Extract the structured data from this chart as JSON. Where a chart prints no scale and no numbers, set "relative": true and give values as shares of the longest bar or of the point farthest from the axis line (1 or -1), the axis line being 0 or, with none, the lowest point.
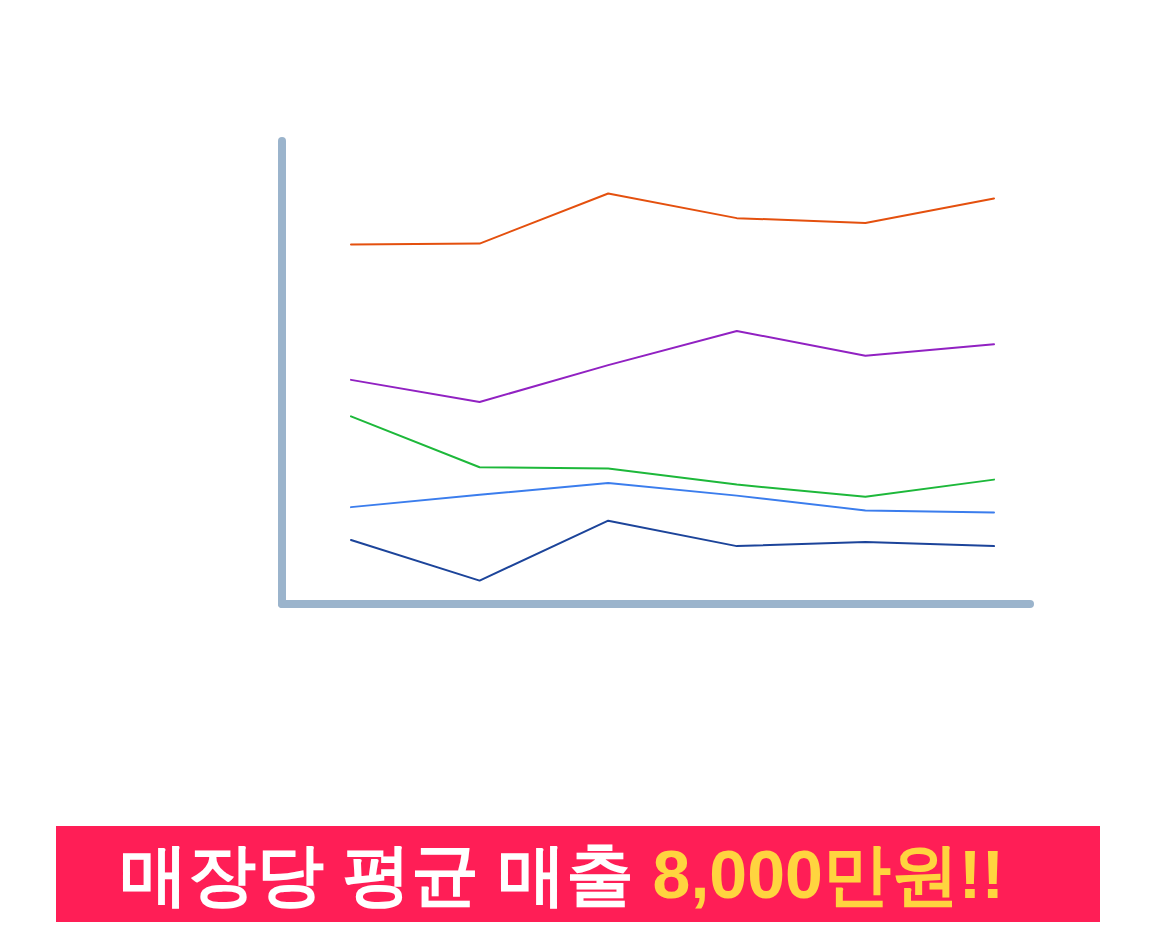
{
  "chart_data": {
    "type": "line",
    "title": "매장당 평균 매출 8,000만원!!",
    "relative": true,
    "categories": [
      null,
      null,
      null,
      null,
      null,
      null
    ],
    "series": [
      {
        "color": "#e4500e",
        "values": [
          0.876,
          0.878,
          1.0,
          0.94,
          0.928,
          0.988
        ]
      },
      {
        "color": "#9121c2",
        "values": [
          0.546,
          0.492,
          0.582,
          0.665,
          0.605,
          0.633
        ]
      },
      {
        "color": "#1db83a",
        "values": [
          0.457,
          0.333,
          0.33,
          0.291,
          0.261,
          0.303
        ]
      },
      {
        "color": "#3b7ded",
        "values": [
          0.236,
          0.266,
          0.295,
          0.264,
          0.228,
          0.223
        ]
      },
      {
        "color": "#1c449a",
        "values": [
          0.156,
          0.057,
          0.203,
          0.141,
          0.151,
          0.141
        ]
      }
    ]
  }
}
